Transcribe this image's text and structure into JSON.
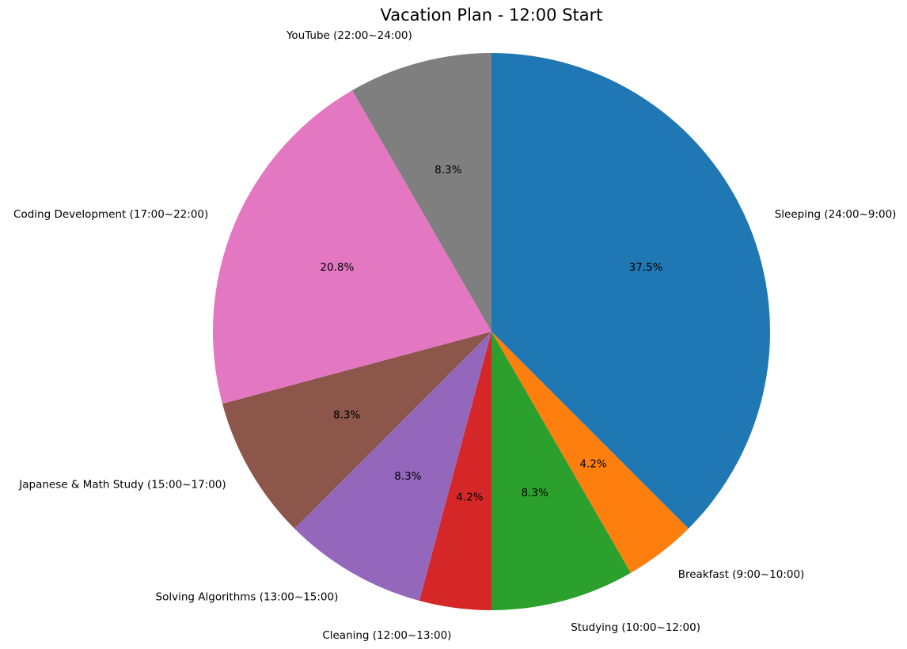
{
  "chart_data": {
    "type": "pie",
    "title": "Vacation Plan - 12:00 Start",
    "start_angle_deg": 90,
    "direction": "clockwise",
    "slices": [
      {
        "label": "Sleeping (24:00~9:00)",
        "value": 9,
        "percent": "37.5%",
        "color": "#1f77b4"
      },
      {
        "label": "Breakfast (9:00~10:00)",
        "value": 1,
        "percent": "4.2%",
        "color": "#ff7f0e"
      },
      {
        "label": "Studying (10:00~12:00)",
        "value": 2,
        "percent": "8.3%",
        "color": "#2ca02c"
      },
      {
        "label": "Cleaning (12:00~13:00)",
        "value": 1,
        "percent": "4.2%",
        "color": "#d62728"
      },
      {
        "label": "Solving Algorithms (13:00~15:00)",
        "value": 2,
        "percent": "8.3%",
        "color": "#9467bd"
      },
      {
        "label": "Japanese & Math Study (15:00~17:00)",
        "value": 2,
        "percent": "8.3%",
        "color": "#8c564b"
      },
      {
        "label": "Coding Development (17:00~22:00)",
        "value": 5,
        "percent": "20.8%",
        "color": "#e377c2"
      },
      {
        "label": "YouTube (22:00~24:00)",
        "value": 2,
        "percent": "8.3%",
        "color": "#7f7f7f"
      }
    ]
  }
}
